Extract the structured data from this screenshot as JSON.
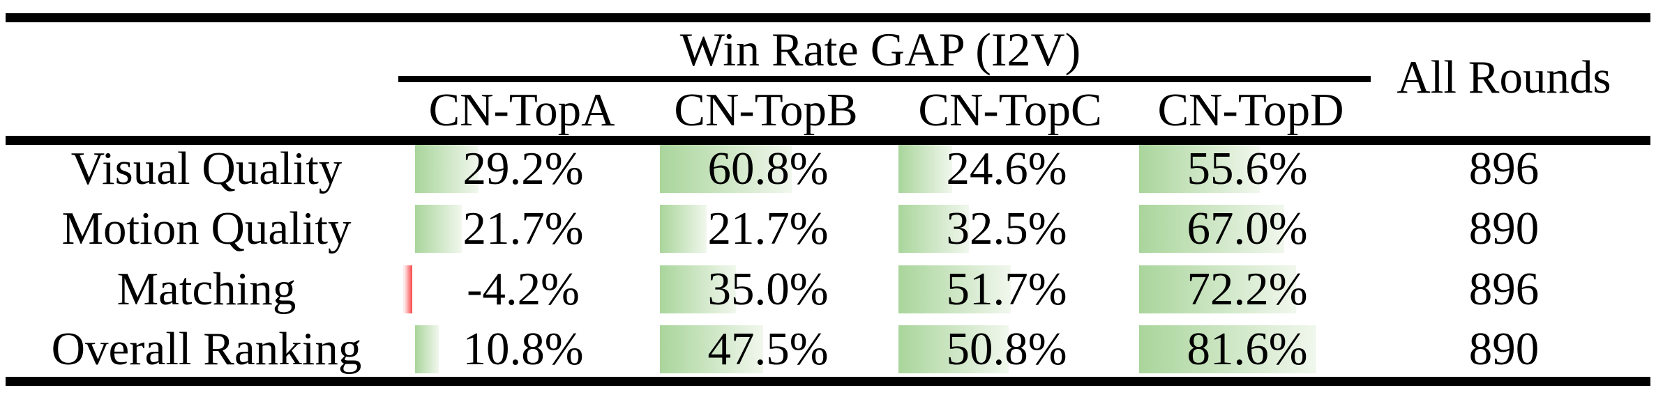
{
  "header": {
    "group_title": "Win Rate GAP (I2V)",
    "all_rounds": "All Rounds"
  },
  "columns": [
    "CN-TopA",
    "CN-TopB",
    "CN-TopC",
    "CN-TopD"
  ],
  "rows": [
    {
      "label": "Visual Quality",
      "cells": [
        {
          "text": "29.2%",
          "value": 29.2
        },
        {
          "text": "60.8%",
          "value": 60.8
        },
        {
          "text": "24.6%",
          "value": 24.6
        },
        {
          "text": "55.6%",
          "value": 55.6
        }
      ],
      "all_rounds": "896"
    },
    {
      "label": "Motion Quality",
      "cells": [
        {
          "text": "21.7%",
          "value": 21.7
        },
        {
          "text": "21.7%",
          "value": 21.7
        },
        {
          "text": "32.5%",
          "value": 32.5
        },
        {
          "text": "67.0%",
          "value": 67.0
        }
      ],
      "all_rounds": "890"
    },
    {
      "label": "Matching",
      "cells": [
        {
          "text": "-4.2%",
          "value": -4.2
        },
        {
          "text": "35.0%",
          "value": 35.0
        },
        {
          "text": "51.7%",
          "value": 51.7
        },
        {
          "text": "72.2%",
          "value": 72.2
        }
      ],
      "all_rounds": "896"
    },
    {
      "label": "Overall Ranking",
      "cells": [
        {
          "text": "10.8%",
          "value": 10.8
        },
        {
          "text": "47.5%",
          "value": 47.5
        },
        {
          "text": "50.8%",
          "value": 50.8
        },
        {
          "text": "81.6%",
          "value": 81.6
        }
      ],
      "all_rounds": "890"
    }
  ],
  "colors": {
    "bar_positive": "#a9d59b",
    "bar_positive_fade": "#f1f7ed",
    "bar_negative": "#f84848",
    "bar_negative_fade": "#ffeaea",
    "rule": "#000000",
    "text": "#000000"
  },
  "chart_data": {
    "type": "table",
    "title": "Win Rate GAP (I2V)",
    "columns": [
      "CN-TopA",
      "CN-TopB",
      "CN-TopC",
      "CN-TopD",
      "All Rounds"
    ],
    "row_labels": [
      "Visual Quality",
      "Motion Quality",
      "Matching",
      "Overall Ranking"
    ],
    "series": [
      {
        "name": "Visual Quality",
        "values": [
          29.2,
          60.8,
          24.6,
          55.6
        ],
        "all_rounds": 896
      },
      {
        "name": "Motion Quality",
        "values": [
          21.7,
          21.7,
          32.5,
          67.0
        ],
        "all_rounds": 890
      },
      {
        "name": "Matching",
        "values": [
          -4.2,
          35.0,
          51.7,
          72.2
        ],
        "all_rounds": 896
      },
      {
        "name": "Overall Ranking",
        "values": [
          10.8,
          47.5,
          50.8,
          81.6
        ],
        "all_rounds": 890
      }
    ],
    "value_unit": "percent",
    "bar_style": "in-cell gradient data bars, green positive, red negative, ~3.11px per percent"
  }
}
